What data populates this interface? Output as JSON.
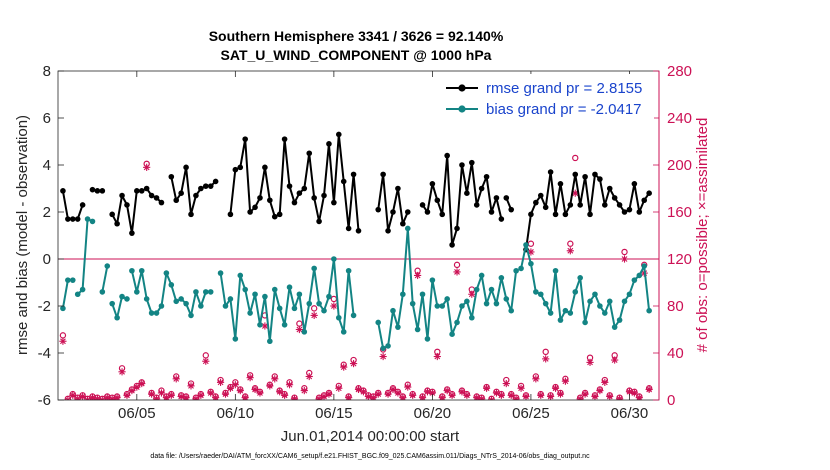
{
  "chart_data": {
    "type": "line",
    "title": "Southern Hemisphere 3341 / 3626 = 92.140%",
    "subtitle": "SAT_U_WIND_COMPONENT @ 1000 hPa",
    "xlabel": "Jun.01,2014 00:00:00 start",
    "ylabel": "rmse and bias (model - observation)",
    "ylabel_right": "# of obs: o=possible; ×=assimilated",
    "xlim": [
      0,
      30.5
    ],
    "ylim": [
      -6,
      8
    ],
    "ylim_right": [
      0,
      280
    ],
    "xticks": [
      4,
      9,
      14,
      19,
      24,
      29
    ],
    "xtick_labels": [
      "06/05",
      "06/10",
      "06/15",
      "06/20",
      "06/25",
      "06/30"
    ],
    "yticks": [
      -6,
      -4,
      -2,
      0,
      2,
      4,
      6,
      8
    ],
    "yticks_right": [
      0,
      40,
      80,
      120,
      160,
      200,
      240,
      280
    ],
    "grid": false,
    "zero_line": true,
    "legend_placement": "top-right",
    "colors": {
      "rmse": "#000000",
      "bias": "#138484",
      "obs": "#cc1155",
      "legend_text": "#1a44cc",
      "right_axis": "#cc1155"
    },
    "series": [
      {
        "name": "rmse grand pr = 2.8155",
        "color": "#000000",
        "segments": [
          {
            "x": [
              0.25,
              0.5,
              0.75
            ],
            "y": [
              2.9,
              1.7,
              1.7
            ]
          },
          {
            "x": [
              1.0,
              1.25
            ],
            "y": [
              1.7,
              2.3
            ]
          },
          {
            "x": [
              1.75,
              2.0,
              2.25
            ],
            "y": [
              2.95,
              2.9,
              2.9
            ]
          },
          {
            "x": [
              2.75,
              3.0,
              3.25,
              3.5,
              3.75,
              4.0,
              4.25,
              4.5,
              4.75,
              5.0,
              5.25
            ],
            "y": [
              1.9,
              1.5,
              2.7,
              2.3,
              1.1,
              2.9,
              2.9,
              3.0,
              2.7,
              2.6,
              2.4
            ]
          },
          {
            "x": [
              5.75,
              6.0,
              6.25,
              6.5,
              6.75,
              7.0,
              7.25,
              7.5
            ],
            "y": [
              3.5,
              2.5,
              2.8,
              3.9,
              1.9,
              2.7,
              3.0,
              3.1
            ]
          },
          {
            "x": [
              7.75,
              8.0
            ],
            "y": [
              3.1,
              3.3
            ]
          },
          {
            "x": [
              8.75,
              9.0,
              9.25,
              9.5,
              9.75,
              10.0,
              10.25,
              10.5,
              10.75,
              11.0,
              11.25,
              11.5,
              11.75,
              12.0,
              12.25,
              12.5,
              12.75,
              13.0,
              13.25,
              13.5,
              13.75,
              14.0,
              14.25,
              14.5,
              14.75,
              15.0,
              15.25
            ],
            "y": [
              1.9,
              3.8,
              3.9,
              5.1,
              2.0,
              2.2,
              2.6,
              3.9,
              2.5,
              1.8,
              1.9,
              5.1,
              3.1,
              2.4,
              2.8,
              3.0,
              4.5,
              2.6,
              1.6,
              2.7,
              4.9,
              2.4,
              5.3,
              3.3,
              1.3,
              3.6,
              1.2
            ]
          },
          {
            "x": [
              16.25,
              16.5,
              16.75,
              17.0,
              17.25,
              17.5,
              17.75
            ],
            "y": [
              2.1,
              3.6,
              1.2,
              2.0,
              3.0,
              1.5,
              2.0
            ]
          },
          {
            "x": [
              18.5,
              18.75,
              19.0,
              19.25,
              19.5,
              19.75,
              20.0,
              20.25,
              20.5,
              20.75,
              21.0,
              21.25,
              21.5,
              21.75,
              22.0,
              22.25,
              22.5
            ],
            "y": [
              2.3,
              2.0,
              3.2,
              2.5,
              1.9,
              4.4,
              0.6,
              1.3,
              4.0,
              2.8,
              4.1,
              2.3,
              3.0,
              3.5,
              2.0,
              2.6,
              1.7
            ]
          },
          {
            "x": [
              22.75,
              23.0
            ],
            "y": [
              2.6,
              2.1
            ]
          },
          {
            "x": [
              23.75,
              24.0,
              24.25,
              24.5,
              24.75,
              25.0,
              25.25,
              25.5,
              25.75,
              26.0,
              26.25,
              26.5,
              26.75,
              27.0,
              27.25,
              27.5,
              27.75,
              28.0,
              28.25,
              28.5,
              28.75,
              29.0,
              29.25,
              29.5,
              29.75,
              30.0
            ],
            "y": [
              0.4,
              1.9,
              2.4,
              2.7,
              2.2,
              3.7,
              1.9,
              3.2,
              1.9,
              2.3,
              3.6,
              2.3,
              3.5,
              1.9,
              3.6,
              3.4,
              2.3,
              3.0,
              2.6,
              2.3,
              2.0,
              2.1,
              3.2,
              2.0,
              2.5,
              2.8
            ]
          }
        ]
      },
      {
        "name": "bias grand pr = -2.0417",
        "color": "#138484",
        "segments": [
          {
            "x": [
              0.25,
              0.5,
              0.75
            ],
            "y": [
              -2.1,
              -0.9,
              -0.9
            ]
          },
          {
            "x": [
              1.0,
              1.25,
              1.5,
              1.75
            ],
            "y": [
              -1.5,
              -1.3,
              1.7,
              1.6
            ]
          },
          {
            "x": [
              2.25,
              2.5
            ],
            "y": [
              -1.4,
              -0.3
            ]
          },
          {
            "x": [
              2.75,
              3.0,
              3.25,
              3.5
            ],
            "y": [
              -1.9,
              -2.5,
              -1.6,
              -1.7
            ]
          },
          {
            "x": [
              3.75,
              4.0,
              4.25,
              4.5,
              4.75,
              5.0,
              5.25,
              5.5,
              5.75,
              6.0,
              6.25,
              6.5,
              6.75,
              7.0,
              7.25,
              7.5,
              7.75
            ],
            "y": [
              -0.5,
              -1.4,
              -0.5,
              -1.7,
              -2.3,
              -2.3,
              -2.0,
              -0.6,
              -1.1,
              -1.8,
              -1.7,
              -1.9,
              -2.4,
              -1.4,
              -2.0,
              -1.4,
              -1.4
            ]
          },
          {
            "x": [
              8.25,
              8.5,
              8.75,
              9.0,
              9.25,
              9.5,
              9.75,
              10.0,
              10.25,
              10.5,
              10.75,
              11.0,
              11.25,
              11.5,
              11.75,
              12.0,
              12.25,
              12.5,
              12.75,
              13.0,
              13.25,
              13.5,
              13.75,
              14.0,
              14.25,
              14.5,
              14.75,
              15.0
            ],
            "y": [
              -0.6,
              -2.0,
              -1.7,
              -3.4,
              -0.7,
              -1.3,
              -2.3,
              -1.5,
              -2.8,
              -1.6,
              -3.5,
              -1.3,
              -2.1,
              -2.8,
              -1.2,
              -2.1,
              -1.5,
              -3.1,
              -1.9,
              -0.4,
              -1.9,
              -2.2,
              -1.6,
              0.0,
              -2.5,
              -3.1,
              -0.5,
              -2.4
            ]
          },
          {
            "x": [
              16.25,
              16.5,
              16.75,
              17.0,
              17.25,
              17.5,
              17.75,
              18.0,
              18.25,
              18.5,
              18.75,
              19.0,
              19.25,
              19.5,
              19.75,
              20.0,
              20.25,
              20.5,
              20.75,
              21.0,
              21.25,
              21.5,
              21.75,
              22.0,
              22.25,
              22.5,
              22.75,
              23.0,
              23.25
            ],
            "y": [
              -2.7,
              -3.8,
              -3.7,
              -2.2,
              -2.9,
              -1.5,
              1.3,
              -1.9,
              -3.0,
              -1.5,
              -3.4,
              -0.9,
              -2.0,
              -2.0,
              -1.7,
              -3.2,
              -2.7,
              -2.0,
              -1.8,
              -2.5,
              -1.3,
              -0.7,
              -1.9,
              -1.3,
              -1.9,
              -0.8,
              -1.7,
              -2.2,
              -0.5
            ]
          },
          {
            "x": [
              23.5,
              23.75,
              24.0,
              24.25,
              24.5,
              24.75,
              25.0,
              25.25,
              25.5,
              25.75,
              26.0,
              26.25,
              26.5,
              26.75,
              27.0,
              27.25,
              27.5,
              27.75,
              28.0,
              28.25,
              28.5,
              28.75,
              29.0,
              29.25,
              29.5,
              29.75,
              30.0
            ],
            "y": [
              -0.4,
              0.6,
              -0.2,
              -1.4,
              -1.5,
              -1.9,
              -2.3,
              -0.5,
              -2.6,
              -2.2,
              -2.3,
              -1.4,
              -0.8,
              -2.7,
              -1.8,
              -1.5,
              -2.0,
              -2.3,
              -1.8,
              -2.9,
              -2.6,
              -1.8,
              -1.5,
              -0.9,
              -0.7,
              -0.3,
              -2.2
            ]
          }
        ]
      }
    ],
    "obs_possible": {
      "marker": "o",
      "x": [
        0.25,
        0.5,
        0.75,
        1.0,
        1.25,
        1.5,
        1.75,
        2.0,
        2.25,
        2.5,
        2.75,
        3.0,
        3.25,
        3.5,
        3.75,
        4.0,
        4.25,
        4.5,
        4.75,
        5.0,
        5.25,
        5.5,
        5.75,
        6.0,
        6.25,
        6.5,
        6.75,
        7.0,
        7.25,
        7.5,
        7.75,
        8.0,
        8.25,
        8.5,
        8.75,
        9.0,
        9.25,
        9.5,
        9.75,
        10.0,
        10.25,
        10.5,
        10.75,
        11.0,
        11.25,
        11.5,
        11.75,
        12.0,
        12.25,
        12.5,
        12.75,
        13.0,
        13.25,
        13.5,
        13.75,
        14.0,
        14.25,
        14.5,
        14.75,
        15.0,
        15.25,
        15.5,
        15.75,
        16.0,
        16.25,
        16.5,
        16.75,
        17.0,
        17.25,
        17.5,
        17.75,
        18.0,
        18.25,
        18.5,
        18.75,
        19.0,
        19.25,
        19.5,
        19.75,
        20.0,
        20.25,
        20.5,
        20.75,
        21.0,
        21.25,
        21.5,
        21.75,
        22.0,
        22.25,
        22.5,
        22.75,
        23.0,
        23.25,
        23.5,
        23.75,
        24.0,
        24.25,
        24.5,
        24.75,
        25.0,
        25.25,
        25.5,
        25.75,
        26.0,
        26.25,
        26.5,
        26.75,
        27.0,
        27.25,
        27.5,
        27.75,
        28.0,
        28.25,
        28.5,
        28.75,
        29.0,
        29.25,
        29.5,
        29.75,
        30.0
      ],
      "y": [
        55,
        1,
        5,
        2,
        4,
        1,
        3,
        2,
        1,
        3,
        2,
        3,
        27,
        5,
        9,
        12,
        15,
        201,
        6,
        2,
        8,
        3,
        5,
        20,
        4,
        3,
        14,
        2,
        5,
        38,
        7,
        3,
        17,
        6,
        11,
        15,
        9,
        3,
        21,
        10,
        7,
        72,
        13,
        20,
        8,
        5,
        15,
        2,
        65,
        10,
        23,
        78,
        2,
        4,
        6,
        86,
        12,
        30,
        3,
        34,
        10,
        8,
        4,
        3,
        6,
        43,
        6,
        10,
        7,
        3,
        13,
        5,
        110,
        3,
        8,
        7,
        41,
        3,
        9,
        5,
        115,
        8,
        5,
        94,
        3,
        2,
        11,
        1,
        7,
        5,
        17,
        5,
        2,
        12,
        4,
        133,
        20,
        5,
        41,
        4,
        11,
        6,
        18,
        133,
        206,
        2,
        6,
        36,
        4,
        9,
        17,
        4,
        38,
        2,
        126,
        8,
        7,
        3,
        115,
        10
      ],
      "note": "values estimated"
    },
    "obs_assimilated": {
      "marker": "*",
      "x": [
        0.25,
        0.5,
        0.75,
        1.0,
        1.25,
        1.5,
        1.75,
        2.0,
        2.25,
        2.5,
        2.75,
        3.0,
        3.25,
        3.5,
        3.75,
        4.0,
        4.25,
        4.5,
        4.75,
        5.0,
        5.25,
        5.5,
        5.75,
        6.0,
        6.25,
        6.5,
        6.75,
        7.0,
        7.25,
        7.5,
        7.75,
        8.0,
        8.25,
        8.5,
        8.75,
        9.0,
        9.25,
        9.5,
        9.75,
        10.0,
        10.25,
        10.5,
        10.75,
        11.0,
        11.25,
        11.5,
        11.75,
        12.0,
        12.25,
        12.5,
        12.75,
        13.0,
        13.25,
        13.5,
        13.75,
        14.0,
        14.25,
        14.5,
        14.75,
        15.0,
        15.25,
        15.5,
        15.75,
        16.0,
        16.25,
        16.5,
        16.75,
        17.0,
        17.25,
        17.5,
        17.75,
        18.0,
        18.25,
        18.5,
        18.75,
        19.0,
        19.25,
        19.5,
        19.75,
        20.0,
        20.25,
        20.5,
        20.75,
        21.0,
        21.25,
        21.5,
        21.75,
        22.0,
        22.25,
        22.5,
        22.75,
        23.0,
        23.25,
        23.5,
        23.75,
        24.0,
        24.25,
        24.5,
        24.75,
        25.0,
        25.25,
        25.5,
        25.75,
        26.0,
        26.25,
        26.5,
        26.75,
        27.0,
        27.25,
        27.5,
        27.75,
        28.0,
        28.25,
        28.5,
        28.75,
        29.0,
        29.25,
        29.5,
        29.75,
        30.0
      ],
      "y": [
        50,
        0,
        4,
        1,
        3,
        0,
        2,
        1,
        0,
        2,
        1,
        2,
        24,
        4,
        8,
        11,
        14,
        198,
        5,
        1,
        6,
        2,
        4,
        18,
        3,
        2,
        12,
        1,
        4,
        33,
        6,
        2,
        15,
        5,
        10,
        13,
        8,
        2,
        19,
        9,
        6,
        63,
        12,
        18,
        7,
        4,
        13,
        1,
        60,
        8,
        20,
        72,
        1,
        3,
        5,
        80,
        10,
        28,
        2,
        31,
        9,
        7,
        3,
        2,
        5,
        37,
        5,
        9,
        6,
        2,
        11,
        4,
        106,
        2,
        7,
        6,
        37,
        2,
        8,
        4,
        109,
        7,
        4,
        90,
        2,
        1,
        10,
        0,
        6,
        4,
        14,
        4,
        1,
        10,
        3,
        126,
        18,
        4,
        35,
        3,
        10,
        5,
        16,
        127,
        176,
        1,
        5,
        32,
        3,
        8,
        15,
        3,
        34,
        1,
        120,
        7,
        6,
        2,
        108,
        9
      ],
      "note": "values estimated"
    },
    "footnote": "data file: /Users/raeder/DAI/ATM_forcXX/CAM6_setup/f.e21.FHIST_BGC.f09_025.CAM6assim.011/Diags_NTrS_2014-06/obs_diag_output.nc"
  }
}
